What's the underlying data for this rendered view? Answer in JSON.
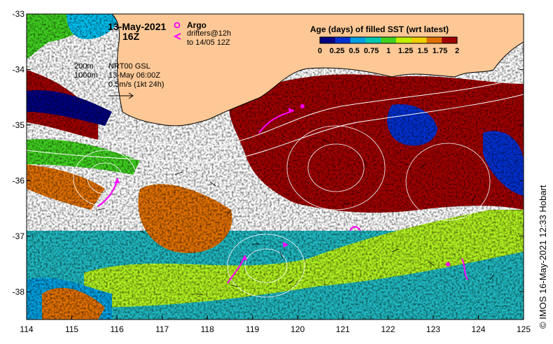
{
  "title_date": "13-May-2021",
  "title_time": "16Z",
  "legend_argo": "Argo",
  "legend_drifters_1": "drifters@12h",
  "legend_drifters_2": "to 14/05 12Z",
  "depth_200": "200m",
  "depth_1000": "1000m",
  "product_1": "NRT00 GSL",
  "product_2": "13-May 06:00Z",
  "scale_label": "0.5m/s (1kt 24h)",
  "colorbar": {
    "title": "Age (days) of filled SST (wrt latest)",
    "tick_labels": [
      "0",
      "0.25",
      "0.5",
      "0.75",
      "1",
      "1.25",
      "1.5",
      "1.75",
      "2"
    ],
    "colors": [
      "#000080",
      "#0030d0",
      "#00a0e0",
      "#00c8b0",
      "#40d020",
      "#c0f000",
      "#f0d000",
      "#e07000",
      "#a00000"
    ]
  },
  "credit": "© IMOS 16-May-2021 12:33 Hobart",
  "axes": {
    "lon_labels": [
      "114",
      "115",
      "116",
      "117",
      "118",
      "119",
      "120",
      "121",
      "122",
      "123",
      "124",
      "125"
    ],
    "lat_labels": [
      "-33",
      "-34",
      "-35",
      "-36",
      "-37",
      "-38"
    ],
    "lon_range": [
      114,
      125
    ],
    "lat_range": [
      -38.5,
      -33
    ]
  },
  "colors": {
    "land": "#fdc896",
    "cloud_gap": "#ffffff",
    "argo": "#ff00ff",
    "drifter": "#ff00ff",
    "old_sst": "#a00000"
  }
}
